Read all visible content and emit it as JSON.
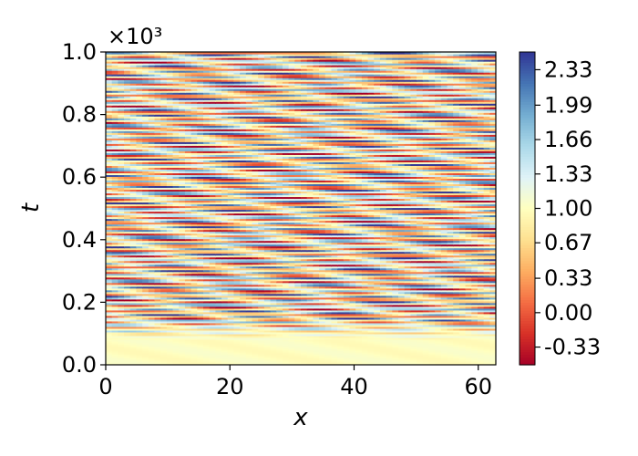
{
  "chart_data": {
    "type": "heatmap",
    "title": "",
    "xlabel": "x",
    "ylabel": "t",
    "xlim": [
      0,
      62.83
    ],
    "ylim": [
      0,
      1.0
    ],
    "y_multiplier": "×10³",
    "x_ticks": [
      0,
      20,
      40,
      60
    ],
    "x_tick_labels": [
      "0",
      "20",
      "40",
      "60"
    ],
    "y_ticks": [
      0.0,
      0.2,
      0.4,
      0.6,
      0.8,
      1.0
    ],
    "y_tick_labels": [
      "0.0",
      "0.2",
      "0.4",
      "0.6",
      "0.8",
      "1.0"
    ],
    "colormap": "RdYlBu",
    "colorbar": {
      "vmin": -0.5,
      "vmax": 2.5,
      "ticks": [
        -0.33,
        0.0,
        0.33,
        0.67,
        1.0,
        1.33,
        1.66,
        1.99,
        2.33
      ],
      "tick_labels": [
        "-0.33",
        "0.00",
        "0.33",
        "0.67",
        "1.00",
        "1.33",
        "1.66",
        "1.99",
        "2.33"
      ]
    },
    "description_of_field": "Near-uniform value ~1.0 for t < 0.08 (×10³), then oscillating diagonal stripes drifting upward with x, values ranging roughly -0.5 to 2.5"
  },
  "colors": {
    "colormap_stops": [
      "#a50026",
      "#d73027",
      "#f46d43",
      "#fdae61",
      "#fee090",
      "#ffffbf",
      "#e0f3f8",
      "#abd9e9",
      "#74add1",
      "#4575b4",
      "#313695"
    ]
  }
}
